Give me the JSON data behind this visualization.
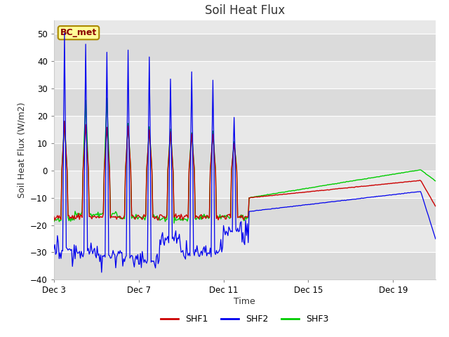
{
  "title": "Soil Heat Flux",
  "xlabel": "Time",
  "ylabel": "Soil Heat Flux (W/m2)",
  "ylim": [
    -40,
    55
  ],
  "yticks": [
    -40,
    -30,
    -20,
    -10,
    0,
    10,
    20,
    30,
    40,
    50
  ],
  "plot_bg_color": "#e8e8e8",
  "fig_bg_color": "#ffffff",
  "line_colors": {
    "SHF1": "#cc0000",
    "SHF2": "#0000ee",
    "SHF3": "#00cc00"
  },
  "legend_entries": [
    "SHF1",
    "SHF2",
    "SHF3"
  ],
  "annotation_text": "BC_met",
  "x_tick_labels": [
    "Dec 3",
    "Dec 7",
    "Dec 11",
    "Dec 15",
    "Dec 19"
  ],
  "x_tick_positions": [
    0,
    4,
    8,
    12,
    16
  ],
  "band_colors": [
    "#e8e8e8",
    "#d8d8d8"
  ]
}
